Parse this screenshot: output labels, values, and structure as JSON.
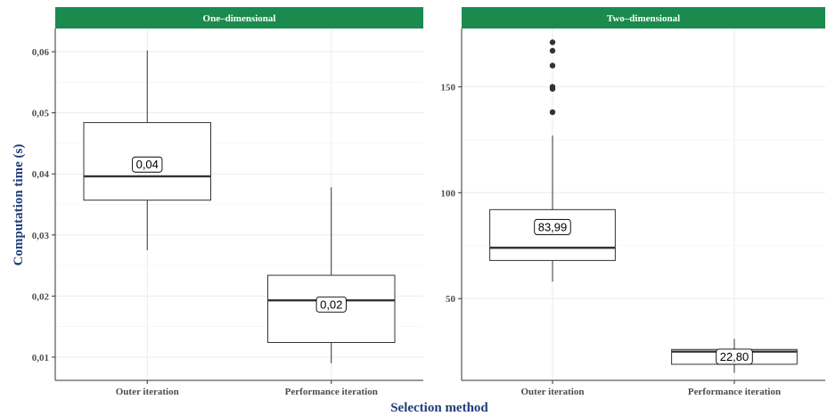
{
  "xlabel": "Selection method",
  "ylabel": "Computation time (s)",
  "colors": {
    "strip": "#1b8a4e",
    "axis_title": "#1f3d7a",
    "tick_text": "#4d4d4d",
    "grid": "#ebebeb",
    "box_line": "#333333"
  },
  "chart_data": [
    {
      "type": "box",
      "title": "One–dimensional",
      "categories": [
        "Outer iteration",
        "Performance iteration"
      ],
      "yticks": [
        0.01,
        0.02,
        0.03,
        0.04,
        0.05,
        0.06
      ],
      "ytick_labels": [
        "0,01",
        "0,02",
        "0,03",
        "0,04",
        "0,05",
        "0,06"
      ],
      "ylim": [
        0.0062,
        0.0638
      ],
      "grid": true,
      "boxes": [
        {
          "category": "Outer iteration",
          "whisker_low": 0.0275,
          "q1": 0.0357,
          "median": 0.0396,
          "q3": 0.0484,
          "whisker_high": 0.0602,
          "outliers": [],
          "label": "0,04",
          "label_value": 0.0416
        },
        {
          "category": "Performance iteration",
          "whisker_low": 0.009,
          "q1": 0.0124,
          "median": 0.0193,
          "q3": 0.0234,
          "whisker_high": 0.0378,
          "outliers": [],
          "label": "0,02",
          "label_value": 0.0187
        }
      ]
    },
    {
      "type": "box",
      "title": "Two–dimensional",
      "categories": [
        "Outer iteration",
        "Performance iteration"
      ],
      "yticks": [
        50,
        100,
        150
      ],
      "ytick_labels": [
        "50",
        "100",
        "150"
      ],
      "ylim": [
        11.4,
        177.5
      ],
      "grid": true,
      "boxes": [
        {
          "category": "Outer iteration",
          "whisker_low": 58,
          "q1": 68,
          "median": 74,
          "q3": 92,
          "whisker_high": 127,
          "outliers": [
            138,
            149,
            150,
            160,
            167,
            171
          ],
          "label": "83,99",
          "label_value": 83.99
        },
        {
          "category": "Performance iteration",
          "whisker_low": 15,
          "q1": 19,
          "median": 25,
          "q3": 26,
          "whisker_high": 31,
          "outliers": [],
          "label": "22,80",
          "label_value": 22.8
        }
      ]
    }
  ]
}
